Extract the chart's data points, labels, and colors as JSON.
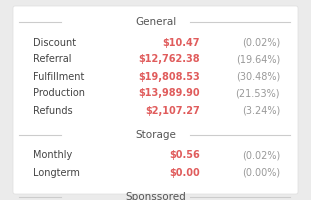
{
  "bg_color": "#ebebeb",
  "panel_color": "#ffffff",
  "sections": [
    {
      "header": "General",
      "rows": [
        {
          "label": "Discount",
          "value": "$10.47",
          "pct": "(0.02%)"
        },
        {
          "label": "Referral",
          "value": "$12,762.38",
          "pct": "(19.64%)"
        },
        {
          "label": "Fulfillment",
          "value": "$19,808.53",
          "pct": "(30.48%)"
        },
        {
          "label": "Production",
          "value": "$13,989.90",
          "pct": "(21.53%)"
        },
        {
          "label": "Refunds",
          "value": "$2,107.27",
          "pct": "(3.24%)"
        }
      ]
    },
    {
      "header": "Storage",
      "rows": [
        {
          "label": "Monthly",
          "value": "$0.56",
          "pct": "(0.02%)"
        },
        {
          "label": "Longterm",
          "value": "$0.00",
          "pct": "(0.00%)"
        }
      ]
    },
    {
      "header": "Sponssored",
      "rows": []
    }
  ],
  "label_color": "#444444",
  "value_color": "#e05c5c",
  "pct_color": "#999999",
  "header_color": "#555555",
  "line_color": "#cccccc",
  "label_fontsize": 7.0,
  "value_fontsize": 7.0,
  "header_fontsize": 7.5
}
